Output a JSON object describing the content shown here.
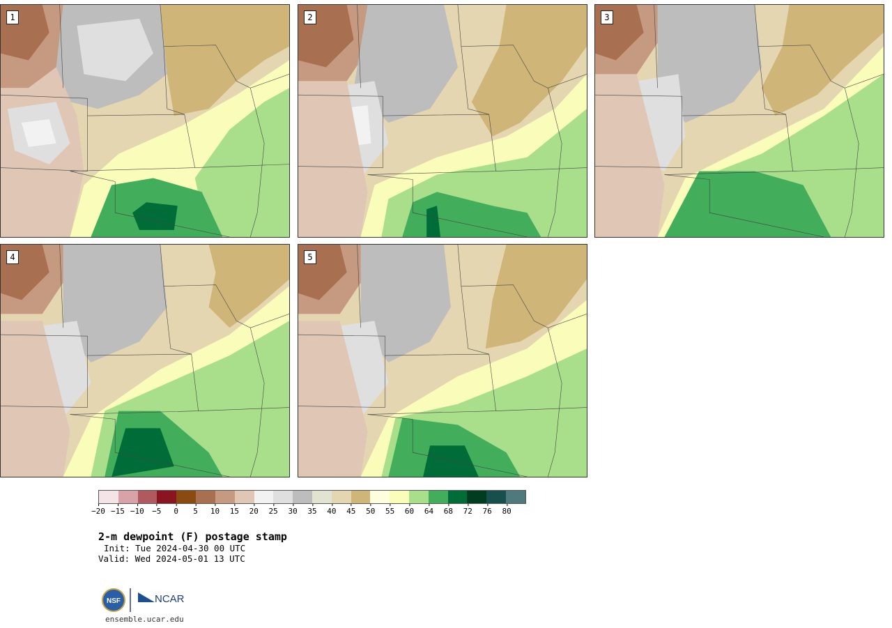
{
  "panels": [
    {
      "label": "1"
    },
    {
      "label": "2"
    },
    {
      "label": "3"
    },
    {
      "label": "4"
    },
    {
      "label": "5"
    }
  ],
  "colorbar": {
    "colors": [
      "#f5e4e6",
      "#d8a2a8",
      "#b05a60",
      "#8a1520",
      "#8a4a10",
      "#a87050",
      "#c59a80",
      "#e0c6b4",
      "#f2f2f2",
      "#dfdfdf",
      "#bdbdbd",
      "#e3e3d2",
      "#e4d6b0",
      "#cfb578",
      "#fefede",
      "#fafdb9",
      "#a9de8a",
      "#42ad5a",
      "#006d38",
      "#003d20",
      "#174f4c",
      "#50797e"
    ],
    "tick_labels": [
      "−20",
      "−15",
      "−10",
      "−5",
      "0",
      "5",
      "10",
      "15",
      "20",
      "25",
      "30",
      "35",
      "40",
      "45",
      "50",
      "55",
      "60",
      "64",
      "68",
      "72",
      "76",
      "80"
    ]
  },
  "title": "2-m dewpoint (F) postage stamp",
  "init": "Init: Tue 2024-04-30 00 UTC",
  "valid": "Valid: Wed 2024-05-01 13 UTC",
  "logo": {
    "nsf": "NSF",
    "ncar": "NCAR"
  },
  "site": "ensemble.ucar.edu"
}
